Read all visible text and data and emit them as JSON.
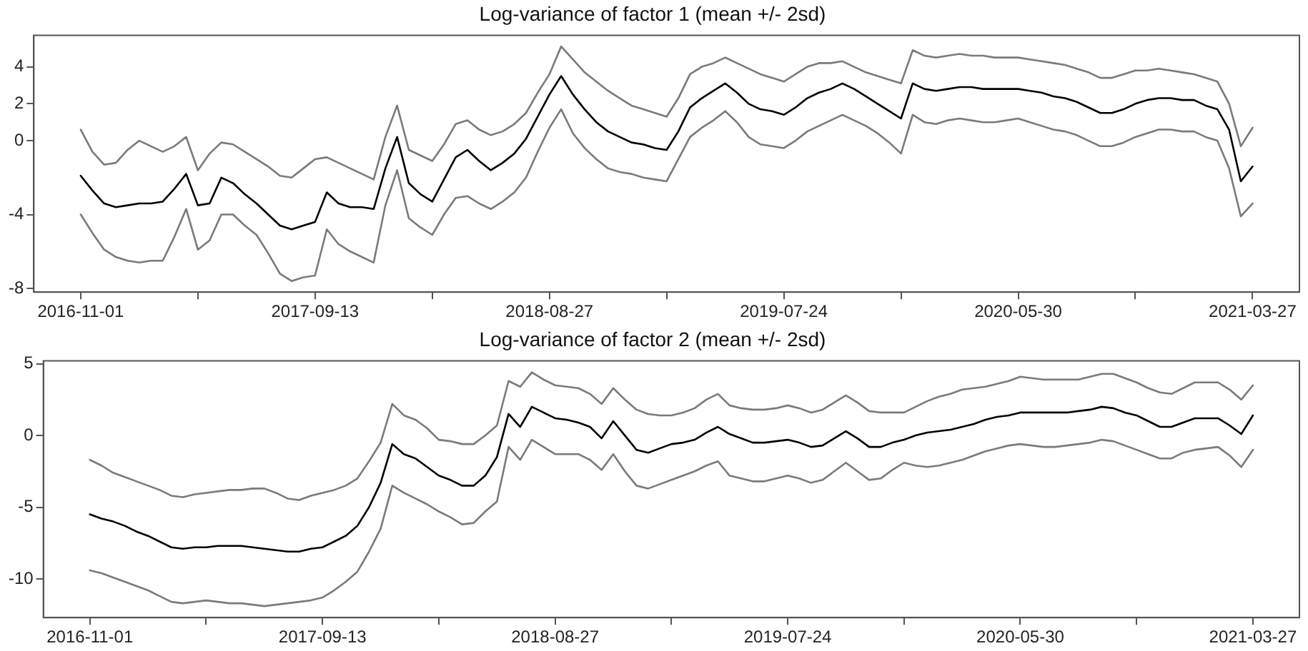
{
  "chart_data": [
    {
      "type": "line",
      "title": "Log-variance of factor 1 (mean +/- 2sd)",
      "categories": [
        "2016-11-01",
        null,
        null,
        null,
        null,
        null,
        null,
        null,
        null,
        null,
        null,
        null,
        null,
        null,
        null,
        null,
        null,
        null,
        null,
        null,
        "2017-09-13",
        null,
        null,
        null,
        null,
        null,
        null,
        null,
        null,
        null,
        null,
        null,
        null,
        null,
        null,
        null,
        null,
        null,
        null,
        null,
        "2018-08-27",
        null,
        null,
        null,
        null,
        null,
        null,
        null,
        null,
        null,
        null,
        null,
        null,
        null,
        null,
        null,
        null,
        null,
        null,
        null,
        "2019-07-24",
        null,
        null,
        null,
        null,
        null,
        null,
        null,
        null,
        null,
        null,
        null,
        null,
        null,
        null,
        null,
        null,
        null,
        null,
        null,
        "2020-05-30",
        null,
        null,
        null,
        null,
        null,
        null,
        null,
        null,
        null,
        null,
        null,
        null,
        null,
        null,
        null,
        null,
        null,
        null,
        null,
        "2021-03-27"
      ],
      "ylim": [
        -8.2,
        5.7
      ],
      "yticks": [
        -8,
        -4,
        0,
        2,
        4
      ],
      "grid": false,
      "marker": "none",
      "line_style": "solid",
      "series": [
        {
          "color": "#7a7a7a",
          "values": [
            0.6,
            -0.6,
            -1.3,
            -1.2,
            -0.5,
            0.0,
            -0.3,
            -0.6,
            -0.3,
            0.2,
            -1.6,
            -0.7,
            -0.1,
            -0.2,
            -0.6,
            -1.0,
            -1.4,
            -1.9,
            -2.0,
            -1.5,
            -1.0,
            -0.9,
            -1.2,
            -1.5,
            -1.8,
            -2.1,
            0.2,
            1.9,
            -0.5,
            -0.8,
            -1.1,
            -0.2,
            0.9,
            1.1,
            0.6,
            0.3,
            0.5,
            0.9,
            1.5,
            2.6,
            3.6,
            5.1,
            4.4,
            3.7,
            3.2,
            2.7,
            2.3,
            1.9,
            1.7,
            1.5,
            1.3,
            2.3,
            3.6,
            4.0,
            4.2,
            4.5,
            4.2,
            3.9,
            3.6,
            3.4,
            3.2,
            3.6,
            4.0,
            4.2,
            4.2,
            4.3,
            4.0,
            3.7,
            3.5,
            3.3,
            3.1,
            4.9,
            4.6,
            4.5,
            4.6,
            4.7,
            4.6,
            4.6,
            4.5,
            4.5,
            4.5,
            4.4,
            4.3,
            4.2,
            4.1,
            3.9,
            3.7,
            3.4,
            3.4,
            3.6,
            3.8,
            3.8,
            3.9,
            3.8,
            3.7,
            3.6,
            3.4,
            3.2,
            2.0,
            -0.3,
            0.7
          ]
        },
        {
          "color": "#000000",
          "values": [
            -1.9,
            -2.7,
            -3.4,
            -3.6,
            -3.5,
            -3.4,
            -3.4,
            -3.3,
            -2.6,
            -1.8,
            -3.5,
            -3.4,
            -2.0,
            -2.3,
            -2.9,
            -3.4,
            -4.0,
            -4.6,
            -4.8,
            -4.6,
            -4.4,
            -2.8,
            -3.4,
            -3.6,
            -3.6,
            -3.7,
            -1.5,
            0.2,
            -2.3,
            -2.9,
            -3.3,
            -2.1,
            -0.9,
            -0.5,
            -1.1,
            -1.6,
            -1.2,
            -0.7,
            0.1,
            1.3,
            2.5,
            3.5,
            2.5,
            1.7,
            1.0,
            0.5,
            0.2,
            -0.1,
            -0.2,
            -0.4,
            -0.5,
            0.5,
            1.8,
            2.3,
            2.7,
            3.1,
            2.6,
            2.0,
            1.7,
            1.6,
            1.4,
            1.8,
            2.3,
            2.6,
            2.8,
            3.1,
            2.8,
            2.4,
            2.0,
            1.6,
            1.2,
            3.1,
            2.8,
            2.7,
            2.8,
            2.9,
            2.9,
            2.8,
            2.8,
            2.8,
            2.8,
            2.7,
            2.6,
            2.4,
            2.3,
            2.1,
            1.8,
            1.5,
            1.5,
            1.7,
            2.0,
            2.2,
            2.3,
            2.3,
            2.2,
            2.2,
            1.9,
            1.7,
            0.6,
            -2.2,
            -1.4
          ]
        },
        {
          "color": "#7a7a7a",
          "values": [
            -4.0,
            -5.0,
            -5.9,
            -6.3,
            -6.5,
            -6.6,
            -6.5,
            -6.5,
            -5.2,
            -3.7,
            -5.9,
            -5.4,
            -4.0,
            -4.0,
            -4.6,
            -5.1,
            -6.1,
            -7.2,
            -7.6,
            -7.4,
            -7.3,
            -4.8,
            -5.6,
            -6.0,
            -6.3,
            -6.6,
            -3.5,
            -1.6,
            -4.2,
            -4.7,
            -5.1,
            -4.0,
            -3.1,
            -3.0,
            -3.4,
            -3.7,
            -3.3,
            -2.8,
            -2.0,
            -0.6,
            0.7,
            1.7,
            0.4,
            -0.4,
            -1.0,
            -1.5,
            -1.7,
            -1.8,
            -2.0,
            -2.1,
            -2.2,
            -1.0,
            0.2,
            0.7,
            1.1,
            1.6,
            1.0,
            0.2,
            -0.2,
            -0.3,
            -0.4,
            0.0,
            0.5,
            0.8,
            1.1,
            1.4,
            1.1,
            0.8,
            0.4,
            -0.1,
            -0.7,
            1.4,
            1.0,
            0.9,
            1.1,
            1.2,
            1.1,
            1.0,
            1.0,
            1.1,
            1.2,
            1.0,
            0.8,
            0.6,
            0.5,
            0.3,
            0.0,
            -0.3,
            -0.3,
            -0.1,
            0.2,
            0.4,
            0.6,
            0.6,
            0.5,
            0.5,
            0.2,
            0.0,
            -1.5,
            -4.1,
            -3.4
          ]
        }
      ]
    },
    {
      "type": "line",
      "title": "Log-variance of factor 2 (mean +/- 2sd)",
      "categories": [
        "2016-11-01",
        null,
        null,
        null,
        null,
        null,
        null,
        null,
        null,
        null,
        null,
        null,
        null,
        null,
        null,
        null,
        null,
        null,
        null,
        null,
        "2017-09-13",
        null,
        null,
        null,
        null,
        null,
        null,
        null,
        null,
        null,
        null,
        null,
        null,
        null,
        null,
        null,
        null,
        null,
        null,
        null,
        "2018-08-27",
        null,
        null,
        null,
        null,
        null,
        null,
        null,
        null,
        null,
        null,
        null,
        null,
        null,
        null,
        null,
        null,
        null,
        null,
        null,
        "2019-07-24",
        null,
        null,
        null,
        null,
        null,
        null,
        null,
        null,
        null,
        null,
        null,
        null,
        null,
        null,
        null,
        null,
        null,
        null,
        null,
        "2020-05-30",
        null,
        null,
        null,
        null,
        null,
        null,
        null,
        null,
        null,
        null,
        null,
        null,
        null,
        null,
        null,
        null,
        null,
        null,
        null,
        "2021-03-27"
      ],
      "ylim": [
        -12.7,
        5.2
      ],
      "yticks": [
        -10,
        -5,
        0,
        5
      ],
      "grid": false,
      "marker": "none",
      "line_style": "solid",
      "series": [
        {
          "color": "#7a7a7a",
          "values": [
            -1.7,
            -2.1,
            -2.6,
            -2.9,
            -3.2,
            -3.5,
            -3.8,
            -4.2,
            -4.3,
            -4.1,
            -4.0,
            -3.9,
            -3.8,
            -3.8,
            -3.7,
            -3.7,
            -4.0,
            -4.4,
            -4.5,
            -4.2,
            -4.0,
            -3.8,
            -3.5,
            -3.0,
            -1.8,
            -0.5,
            2.2,
            1.4,
            1.1,
            0.5,
            -0.3,
            -0.4,
            -0.6,
            -0.6,
            0.0,
            0.7,
            3.8,
            3.4,
            4.4,
            3.9,
            3.5,
            3.4,
            3.3,
            2.9,
            2.2,
            3.3,
            2.5,
            1.8,
            1.5,
            1.4,
            1.4,
            1.6,
            1.9,
            2.5,
            2.9,
            2.1,
            1.9,
            1.8,
            1.8,
            1.9,
            2.1,
            1.9,
            1.6,
            1.8,
            2.3,
            2.8,
            2.3,
            1.7,
            1.6,
            1.6,
            1.6,
            2.0,
            2.4,
            2.7,
            2.9,
            3.2,
            3.3,
            3.4,
            3.6,
            3.8,
            4.1,
            4.0,
            3.9,
            3.9,
            3.9,
            3.9,
            4.1,
            4.3,
            4.3,
            4.0,
            3.7,
            3.3,
            3.0,
            2.9,
            3.3,
            3.7,
            3.7,
            3.7,
            3.2,
            2.5,
            3.5
          ]
        },
        {
          "color": "#000000",
          "values": [
            -5.5,
            -5.8,
            -6.0,
            -6.3,
            -6.7,
            -7.0,
            -7.4,
            -7.8,
            -7.9,
            -7.8,
            -7.8,
            -7.7,
            -7.7,
            -7.7,
            -7.8,
            -7.9,
            -8.0,
            -8.1,
            -8.1,
            -7.9,
            -7.8,
            -7.4,
            -7.0,
            -6.3,
            -5.0,
            -3.3,
            -0.6,
            -1.3,
            -1.6,
            -2.2,
            -2.8,
            -3.1,
            -3.5,
            -3.5,
            -2.8,
            -1.5,
            1.5,
            0.6,
            2.0,
            1.6,
            1.2,
            1.1,
            0.9,
            0.6,
            -0.2,
            1.0,
            0.0,
            -1.0,
            -1.2,
            -0.9,
            -0.6,
            -0.5,
            -0.3,
            0.2,
            0.6,
            0.1,
            -0.2,
            -0.5,
            -0.5,
            -0.4,
            -0.3,
            -0.5,
            -0.8,
            -0.7,
            -0.2,
            0.3,
            -0.2,
            -0.8,
            -0.8,
            -0.5,
            -0.3,
            0.0,
            0.2,
            0.3,
            0.4,
            0.6,
            0.8,
            1.1,
            1.3,
            1.4,
            1.6,
            1.6,
            1.6,
            1.6,
            1.6,
            1.7,
            1.8,
            2.0,
            1.9,
            1.6,
            1.4,
            1.0,
            0.6,
            0.6,
            0.9,
            1.2,
            1.2,
            1.2,
            0.7,
            0.1,
            1.4
          ]
        },
        {
          "color": "#7a7a7a",
          "values": [
            -9.4,
            -9.6,
            -9.9,
            -10.2,
            -10.5,
            -10.8,
            -11.2,
            -11.6,
            -11.7,
            -11.6,
            -11.5,
            -11.6,
            -11.7,
            -11.7,
            -11.8,
            -11.9,
            -11.8,
            -11.7,
            -11.6,
            -11.5,
            -11.3,
            -10.8,
            -10.2,
            -9.5,
            -8.1,
            -6.5,
            -3.5,
            -4.0,
            -4.4,
            -4.8,
            -5.3,
            -5.7,
            -6.2,
            -6.1,
            -5.3,
            -4.6,
            -0.8,
            -1.7,
            -0.3,
            -0.8,
            -1.3,
            -1.3,
            -1.3,
            -1.7,
            -2.4,
            -1.3,
            -2.5,
            -3.5,
            -3.7,
            -3.4,
            -3.1,
            -2.8,
            -2.5,
            -2.1,
            -1.8,
            -2.8,
            -3.0,
            -3.2,
            -3.2,
            -3.0,
            -2.8,
            -3.0,
            -3.3,
            -3.1,
            -2.5,
            -1.9,
            -2.5,
            -3.1,
            -3.0,
            -2.4,
            -1.9,
            -2.1,
            -2.2,
            -2.1,
            -1.9,
            -1.7,
            -1.4,
            -1.1,
            -0.9,
            -0.7,
            -0.6,
            -0.7,
            -0.8,
            -0.8,
            -0.7,
            -0.6,
            -0.5,
            -0.3,
            -0.4,
            -0.7,
            -1.0,
            -1.3,
            -1.6,
            -1.6,
            -1.2,
            -1.0,
            -0.9,
            -0.8,
            -1.4,
            -2.2,
            -1.0
          ]
        }
      ]
    }
  ]
}
